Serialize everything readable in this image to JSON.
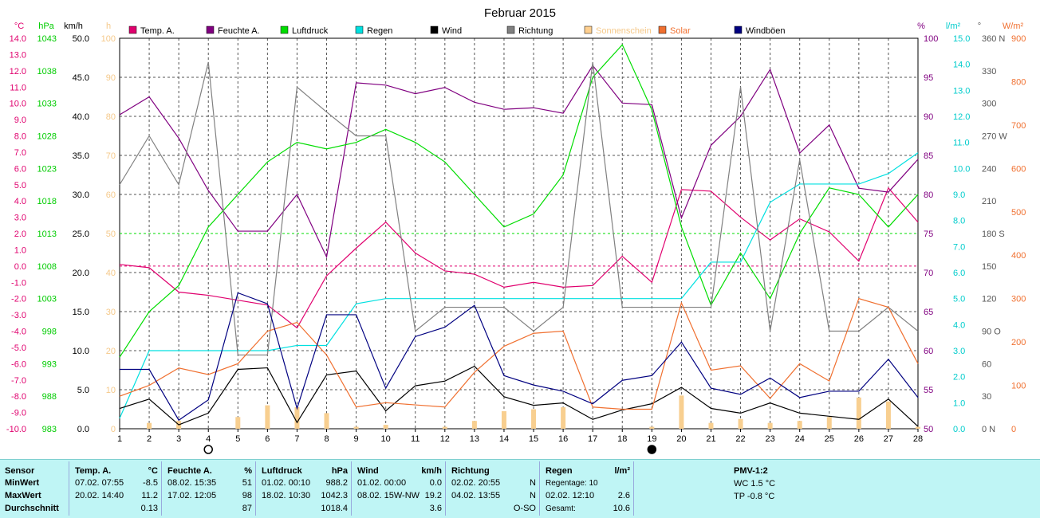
{
  "chart_data": {
    "type": "line",
    "title": "Februar 2015",
    "x": [
      1,
      2,
      3,
      4,
      5,
      6,
      7,
      8,
      9,
      10,
      11,
      12,
      13,
      14,
      15,
      16,
      17,
      18,
      19,
      20,
      21,
      22,
      23,
      24,
      25,
      26,
      27,
      28
    ],
    "axes": {
      "temp": {
        "unit": "°C",
        "min": -10,
        "max": 14,
        "ticks": [
          "14.0",
          "13.0",
          "12.0",
          "11.0",
          "10.0",
          "9.0",
          "8.0",
          "7.0",
          "6.0",
          "5.0",
          "4.0",
          "3.0",
          "2.0",
          "1.0",
          "0.0",
          "-1.0",
          "-2.0",
          "-3.0",
          "-4.0",
          "-5.0",
          "-6.0",
          "-7.0",
          "-8.0",
          "-9.0",
          "-10.0"
        ]
      },
      "pressure": {
        "unit": "hPa",
        "min": 983,
        "max": 1043,
        "ticks": [
          "1043",
          "1038",
          "1033",
          "1028",
          "1023",
          "1018",
          "1013",
          "1008",
          "1003",
          "998",
          "993",
          "988",
          "983"
        ]
      },
      "wind": {
        "unit": "km/h",
        "min": 0,
        "max": 50,
        "ticks": [
          "50.0",
          "45.0",
          "40.0",
          "35.0",
          "30.0",
          "25.0",
          "20.0",
          "15.0",
          "10.0",
          "5.0",
          "0.0"
        ]
      },
      "sun": {
        "unit": "h",
        "min": 0,
        "max": 100,
        "ticks": [
          "100",
          "90",
          "80",
          "70",
          "60",
          "50",
          "40",
          "30",
          "20",
          "10",
          "0"
        ]
      },
      "humidity": {
        "unit": "%",
        "min": 50,
        "max": 100,
        "ticks": [
          "100",
          "95",
          "90",
          "85",
          "80",
          "75",
          "70",
          "65",
          "60",
          "55",
          "50"
        ]
      },
      "rain": {
        "unit": "l/m²",
        "min": 0,
        "max": 15,
        "ticks": [
          "15.0",
          "14.0",
          "13.0",
          "12.0",
          "11.0",
          "10.0",
          "9.0",
          "8.0",
          "7.0",
          "6.0",
          "5.0",
          "4.0",
          "3.0",
          "2.0",
          "1.0",
          "0.0"
        ]
      },
      "direction": {
        "unit": "°",
        "min": 0,
        "max": 360,
        "ticks": [
          "360 N",
          "330",
          "300",
          "270 W",
          "240",
          "210",
          "180 S",
          "150",
          "120",
          "90 O",
          "60",
          "30",
          "0 N"
        ]
      },
      "solar": {
        "unit": "W/m²",
        "min": 0,
        "max": 900,
        "ticks": [
          "900",
          "800",
          "700",
          "600",
          "500",
          "400",
          "300",
          "200",
          "100",
          "0"
        ]
      }
    },
    "units_left": [
      "°C",
      "hPa",
      "km/h",
      "h"
    ],
    "units_right": [
      "%",
      "l/m²",
      "°",
      "W/m²"
    ],
    "legend": [
      {
        "name": "Temp. A.",
        "color": "#e0006e"
      },
      {
        "name": "Feuchte A.",
        "color": "#800080"
      },
      {
        "name": "Luftdruck",
        "color": "#00dd00"
      },
      {
        "name": "Regen",
        "color": "#00e0e0"
      },
      {
        "name": "Wind",
        "color": "#000000"
      },
      {
        "name": "Richtung",
        "color": "#808080"
      },
      {
        "name": "Sonnenschein",
        "color": "#ffd090"
      },
      {
        "name": "Solar",
        "color": "#f07030"
      },
      {
        "name": "Windböen",
        "color": "#000080"
      }
    ],
    "series": [
      {
        "name": "Temp. A.",
        "axis": "temp",
        "color": "#e0006e",
        "values": [
          0.1,
          -0.1,
          -1.6,
          -1.8,
          -2.1,
          -2.4,
          -3.8,
          -0.6,
          1.1,
          2.7,
          0.8,
          -0.3,
          -0.5,
          -1.3,
          -1.0,
          -1.3,
          -1.2,
          0.6,
          -1.0,
          4.7,
          4.6,
          3.0,
          1.6,
          2.9,
          2.1,
          0.3,
          4.8,
          2.7
        ]
      },
      {
        "name": "Feuchte A.",
        "axis": "humidity",
        "color": "#800080",
        "values": [
          90.2,
          92.5,
          87.2,
          80.5,
          75.3,
          75.3,
          80.0,
          72.0,
          94.3,
          94.0,
          92.9,
          93.7,
          91.8,
          90.9,
          91.1,
          90.4,
          96.5,
          91.7,
          91.5,
          77.0,
          86.3,
          90.0,
          96.0,
          85.3,
          88.9,
          80.8,
          80.3,
          84.5
        ]
      },
      {
        "name": "Luftdruck",
        "axis": "pressure",
        "color": "#00dd00",
        "values": [
          994,
          1001,
          1005,
          1014,
          1019,
          1024,
          1027,
          1026,
          1027,
          1029,
          1027,
          1024,
          1019,
          1014,
          1016,
          1022,
          1037,
          1042,
          1032,
          1014,
          1002,
          1010,
          1003,
          1013,
          1020,
          1019,
          1014,
          1019
        ]
      },
      {
        "name": "Regen",
        "axis": "rain",
        "color": "#00e0e0",
        "values": [
          0.4,
          3.0,
          3.0,
          3.0,
          3.0,
          3.0,
          3.2,
          3.2,
          4.8,
          5.0,
          5.0,
          5.0,
          5.0,
          5.0,
          5.0,
          5.0,
          5.0,
          5.0,
          5.0,
          5.0,
          6.4,
          6.4,
          8.7,
          9.4,
          9.4,
          9.4,
          9.8,
          10.6
        ]
      },
      {
        "name": "Wind",
        "axis": "wind",
        "color": "#000000",
        "values": [
          2.6,
          3.8,
          0.5,
          2.0,
          7.6,
          7.8,
          0.8,
          6.9,
          7.4,
          2.3,
          5.5,
          6.1,
          8.0,
          4.1,
          3.0,
          3.3,
          1.2,
          2.4,
          3.2,
          5.3,
          2.6,
          2.0,
          3.3,
          2.0,
          1.6,
          1.2,
          3.8,
          0.3
        ]
      },
      {
        "name": "Richtung",
        "axis": "direction",
        "color": "#808080",
        "values": [
          225,
          270,
          225,
          338,
          68,
          68,
          315,
          292,
          270,
          270,
          90,
          112,
          112,
          112,
          90,
          112,
          338,
          112,
          112,
          112,
          112,
          315,
          90,
          248,
          90,
          90,
          112,
          90
        ]
      },
      {
        "name": "Solar",
        "axis": "solar",
        "color": "#f07030",
        "values": [
          75,
          100,
          140,
          125,
          150,
          225,
          245,
          170,
          50,
          60,
          55,
          50,
          130,
          190,
          220,
          225,
          50,
          45,
          45,
          290,
          135,
          145,
          70,
          150,
          110,
          300,
          280,
          150
        ]
      },
      {
        "name": "Windböen",
        "axis": "wind",
        "color": "#000080",
        "values": [
          7.6,
          7.6,
          1.1,
          3.7,
          17.4,
          16.0,
          2.6,
          14.6,
          14.6,
          5.2,
          11.8,
          13.0,
          15.8,
          6.8,
          5.6,
          4.8,
          3.2,
          6.2,
          6.8,
          11.1,
          5.2,
          4.4,
          6.5,
          4.0,
          4.8,
          4.8,
          8.9,
          4.0
        ]
      }
    ],
    "sunshine_bars": [
      0,
      1.5,
      2,
      0,
      3,
      6,
      5.5,
      4,
      0.5,
      1,
      0,
      0.5,
      2,
      4.5,
      5,
      5.5,
      0,
      0,
      0.5,
      8.5,
      1.5,
      2.5,
      1.5,
      2,
      3,
      8,
      7,
      0.5
    ],
    "reference_lines": [
      {
        "name": "0 °C",
        "axis": "temp",
        "value": 0,
        "color": "#e0006e"
      },
      {
        "name": "Luftdruck Mittel",
        "axis": "pressure",
        "value": 1013,
        "color": "#00dd00"
      }
    ],
    "moon": [
      {
        "day": 4,
        "phase": "full"
      },
      {
        "day": 19,
        "phase": "new"
      }
    ],
    "grid": true
  },
  "summary": {
    "sensor": {
      "h": "Sensor",
      "r1": "MinWert",
      "r2": "MaxWert",
      "r3": "Durchschnitt"
    },
    "temp": {
      "h": "Temp. A.",
      "u": "°C",
      "min_t": "07.02.  07:55",
      "min_v": "-8.5",
      "max_t": "20.02.  14:40",
      "max_v": "11.2",
      "avg": "0.13"
    },
    "hum": {
      "h": "Feuchte A.",
      "u": "%",
      "min_t": "08.02.  15:35",
      "min_v": "51",
      "max_t": "17.02.  12:05",
      "max_v": "98",
      "avg": "87"
    },
    "press": {
      "h": "Luftdruck",
      "u": "hPa",
      "min_t": "01.02.  00:10",
      "min_v": "988.2",
      "max_t": "18.02.  10:30",
      "max_v": "1042.3",
      "avg": "1018.4"
    },
    "wind": {
      "h": "Wind",
      "u": "km/h",
      "min_t": "01.02.  00:00",
      "min_v": "0.0",
      "max_t": "08.02.  15W-NW",
      "max_v": "19.2",
      "avg": "3.6"
    },
    "dir": {
      "h": "Richtung",
      "min_t": "02.02.  20:55",
      "min_v": "N",
      "max_t": "04.02.  13:55",
      "max_v": "N",
      "avg": "O-SO"
    },
    "rain": {
      "h": "Regen",
      "u": "l/m²",
      "days": "Regentage: 10",
      "max_t": "02.02.  12:10",
      "max_v": "2.6",
      "total_l": "Gesamt:",
      "total_v": "10.6"
    },
    "pmv": {
      "h": "PMV-1:2",
      "wc": "WC 1.5 °C",
      "tp": "TP -0.8 °C"
    }
  }
}
